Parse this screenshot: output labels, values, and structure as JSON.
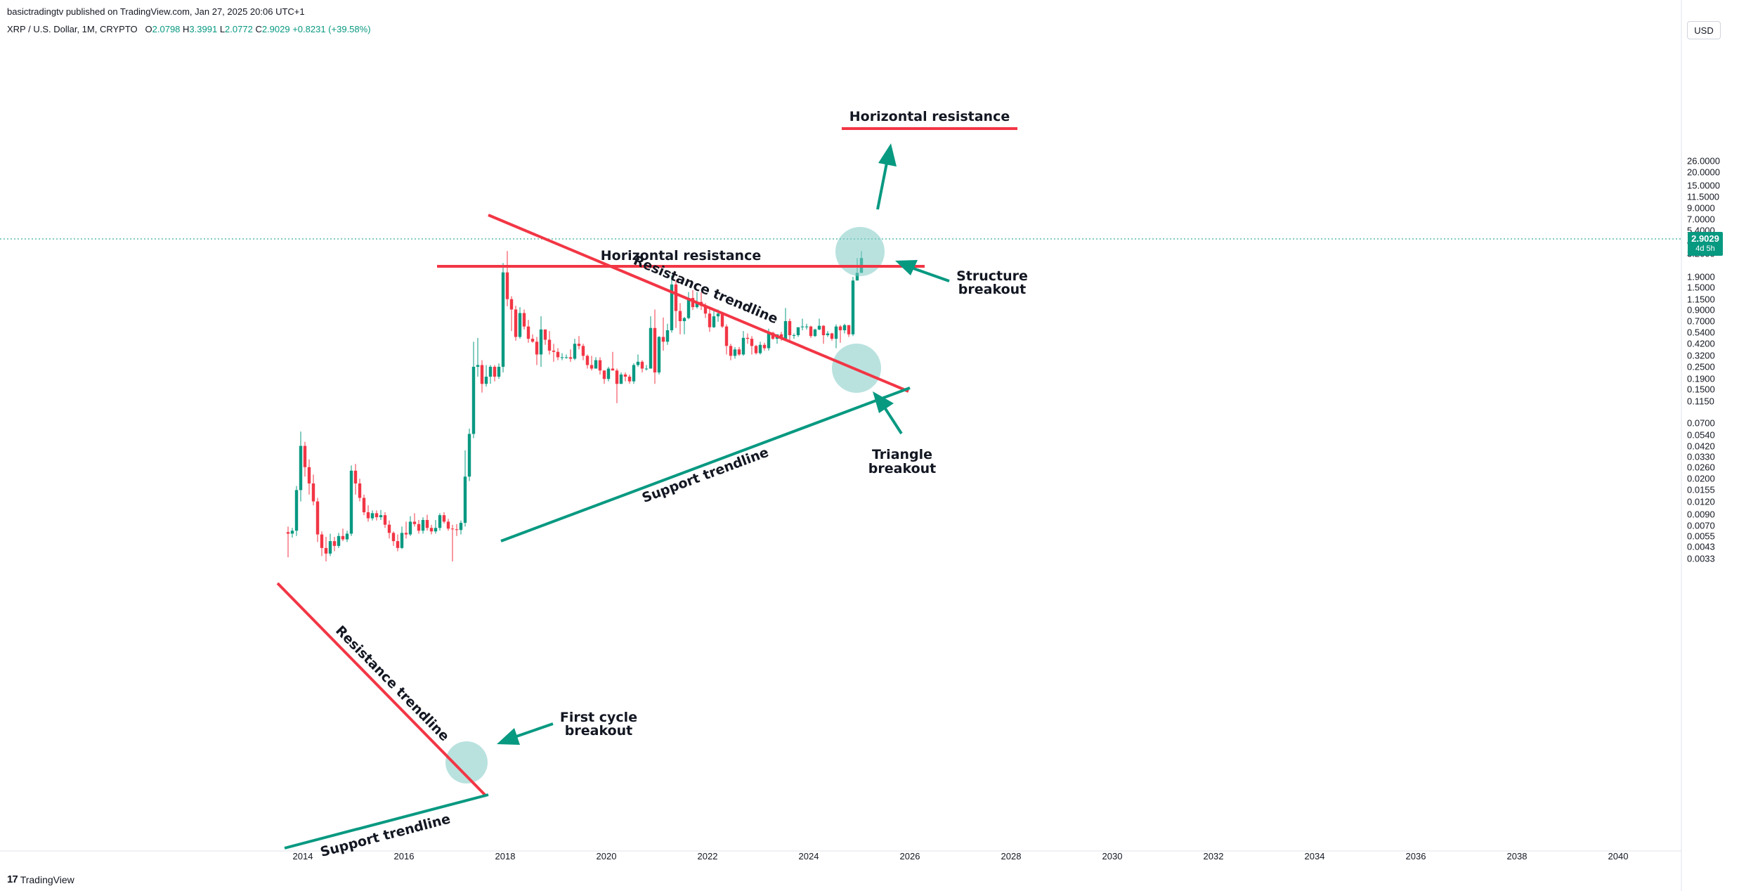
{
  "header": {
    "published": "basictradingtv published on TradingView.com, Jan 27, 2025 20:06 UTC+1",
    "symbol": "XRP / U.S. Dollar, 1M, CRYPTO",
    "o_label": "O",
    "o_value": "2.0798",
    "h_label": "H",
    "h_value": "3.3991",
    "l_label": "L",
    "l_value": "2.0772",
    "c_label": "C",
    "c_value": "2.9029",
    "change": "+0.8231 (+39.58%)"
  },
  "currency_button": "USD",
  "last_price": {
    "price": "2.9029",
    "countdown": "4d 5h",
    "value": 2.9029
  },
  "colors": {
    "up": "#089981",
    "down": "#f23645",
    "resistance": "#f23645",
    "support": "#089981",
    "highlight": "#80cbc4"
  },
  "price_axis": {
    "scale": "log",
    "ticks": [
      "26.0000",
      "20.0000",
      "15.0000",
      "11.5000",
      "9.0000",
      "7.0000",
      "5.4000",
      "4.2000",
      "3.2000",
      "1.9000",
      "1.5000",
      "1.1500",
      "0.9000",
      "0.7000",
      "0.5400",
      "0.4200",
      "0.3200",
      "0.2500",
      "0.1900",
      "0.1500",
      "0.1150",
      "0.0700",
      "0.0540",
      "0.0420",
      "0.0330",
      "0.0260",
      "0.0200",
      "0.0155",
      "0.0120",
      "0.0090",
      "0.0070",
      "0.0055",
      "0.0043",
      "0.0033"
    ]
  },
  "time_axis": {
    "ticks": [
      "2014",
      "2016",
      "2018",
      "2020",
      "2022",
      "2024",
      "2026",
      "2028",
      "2030",
      "2032",
      "2034",
      "2036",
      "2038",
      "2040"
    ]
  },
  "annotations": {
    "top_resistance": "Horizontal resistance",
    "mid_resistance": "Horizontal resistance",
    "resistance_trend_upper": "Resistance trendline",
    "support_trend_upper": "Support trendline",
    "resistance_trend_lower": "Resistance trendline",
    "support_trend_lower": "Support trendline",
    "structure_1": "Structure",
    "structure_2": "breakout",
    "triangle_1": "Triangle",
    "triangle_2": "breakout",
    "first_cycle_1": "First cycle",
    "first_cycle_2": "breakout"
  },
  "chart_data": {
    "type": "candlestick",
    "title": "XRP / U.S. Dollar, 1M, CRYPTO",
    "y_scale": "log",
    "ylim": [
      0.003,
      30
    ],
    "xlim": [
      "2013-07",
      "2040-12"
    ],
    "candles": [
      {
        "t": "2013-09",
        "o": 0.006,
        "h": 0.0068,
        "l": 0.0034,
        "c": 0.0058
      },
      {
        "t": "2013-10",
        "o": 0.0058,
        "h": 0.0066,
        "l": 0.0053,
        "c": 0.0062
      },
      {
        "t": "2013-11",
        "o": 0.0062,
        "h": 0.017,
        "l": 0.0055,
        "c": 0.0155
      },
      {
        "t": "2013-12",
        "o": 0.0155,
        "h": 0.058,
        "l": 0.012,
        "c": 0.042
      },
      {
        "t": "2014-01",
        "o": 0.042,
        "h": 0.046,
        "l": 0.021,
        "c": 0.026
      },
      {
        "t": "2014-02",
        "o": 0.026,
        "h": 0.031,
        "l": 0.014,
        "c": 0.018
      },
      {
        "t": "2014-03",
        "o": 0.018,
        "h": 0.022,
        "l": 0.011,
        "c": 0.012
      },
      {
        "t": "2014-04",
        "o": 0.012,
        "h": 0.013,
        "l": 0.0048,
        "c": 0.0057
      },
      {
        "t": "2014-05",
        "o": 0.0057,
        "h": 0.0061,
        "l": 0.0035,
        "c": 0.0042
      },
      {
        "t": "2014-06",
        "o": 0.0042,
        "h": 0.0054,
        "l": 0.0031,
        "c": 0.0037
      },
      {
        "t": "2014-07",
        "o": 0.0037,
        "h": 0.0058,
        "l": 0.0035,
        "c": 0.0049
      },
      {
        "t": "2014-08",
        "o": 0.0049,
        "h": 0.0054,
        "l": 0.0039,
        "c": 0.0044
      },
      {
        "t": "2014-09",
        "o": 0.0044,
        "h": 0.0059,
        "l": 0.0042,
        "c": 0.0055
      },
      {
        "t": "2014-10",
        "o": 0.0055,
        "h": 0.0065,
        "l": 0.0049,
        "c": 0.0051
      },
      {
        "t": "2014-11",
        "o": 0.0051,
        "h": 0.0062,
        "l": 0.0048,
        "c": 0.0058
      },
      {
        "t": "2014-12",
        "o": 0.0058,
        "h": 0.027,
        "l": 0.0055,
        "c": 0.024
      },
      {
        "t": "2015-01",
        "o": 0.024,
        "h": 0.028,
        "l": 0.014,
        "c": 0.018
      },
      {
        "t": "2015-02",
        "o": 0.018,
        "h": 0.02,
        "l": 0.012,
        "c": 0.013
      },
      {
        "t": "2015-03",
        "o": 0.013,
        "h": 0.014,
        "l": 0.0088,
        "c": 0.0094
      },
      {
        "t": "2015-04",
        "o": 0.0094,
        "h": 0.011,
        "l": 0.0076,
        "c": 0.0082
      },
      {
        "t": "2015-05",
        "o": 0.0082,
        "h": 0.0098,
        "l": 0.0078,
        "c": 0.0092
      },
      {
        "t": "2015-06",
        "o": 0.0092,
        "h": 0.0098,
        "l": 0.0078,
        "c": 0.0084
      },
      {
        "t": "2015-07",
        "o": 0.0084,
        "h": 0.0099,
        "l": 0.0079,
        "c": 0.0088
      },
      {
        "t": "2015-08",
        "o": 0.0088,
        "h": 0.0094,
        "l": 0.0066,
        "c": 0.0071
      },
      {
        "t": "2015-09",
        "o": 0.0071,
        "h": 0.0078,
        "l": 0.0052,
        "c": 0.0059
      },
      {
        "t": "2015-10",
        "o": 0.0059,
        "h": 0.0061,
        "l": 0.0044,
        "c": 0.0049
      },
      {
        "t": "2015-11",
        "o": 0.0049,
        "h": 0.0057,
        "l": 0.0039,
        "c": 0.0042
      },
      {
        "t": "2015-12",
        "o": 0.0042,
        "h": 0.0068,
        "l": 0.0041,
        "c": 0.0059
      },
      {
        "t": "2016-01",
        "o": 0.0059,
        "h": 0.0076,
        "l": 0.0052,
        "c": 0.0057
      },
      {
        "t": "2016-02",
        "o": 0.0057,
        "h": 0.0086,
        "l": 0.0055,
        "c": 0.0076
      },
      {
        "t": "2016-03",
        "o": 0.0076,
        "h": 0.0092,
        "l": 0.0068,
        "c": 0.0072
      },
      {
        "t": "2016-04",
        "o": 0.0072,
        "h": 0.0079,
        "l": 0.0058,
        "c": 0.0062
      },
      {
        "t": "2016-05",
        "o": 0.0062,
        "h": 0.0084,
        "l": 0.0058,
        "c": 0.0079
      },
      {
        "t": "2016-06",
        "o": 0.0079,
        "h": 0.0089,
        "l": 0.0062,
        "c": 0.0066
      },
      {
        "t": "2016-07",
        "o": 0.0066,
        "h": 0.0071,
        "l": 0.0057,
        "c": 0.0061
      },
      {
        "t": "2016-08",
        "o": 0.0061,
        "h": 0.0079,
        "l": 0.0058,
        "c": 0.0066
      },
      {
        "t": "2016-09",
        "o": 0.0066,
        "h": 0.0092,
        "l": 0.0062,
        "c": 0.0088
      },
      {
        "t": "2016-10",
        "o": 0.0088,
        "h": 0.0094,
        "l": 0.0073,
        "c": 0.0076
      },
      {
        "t": "2016-11",
        "o": 0.0076,
        "h": 0.0081,
        "l": 0.0062,
        "c": 0.0065
      },
      {
        "t": "2016-12",
        "o": 0.0065,
        "h": 0.0071,
        "l": 0.0031,
        "c": 0.0064
      },
      {
        "t": "2017-01",
        "o": 0.0064,
        "h": 0.0072,
        "l": 0.0055,
        "c": 0.0063
      },
      {
        "t": "2017-02",
        "o": 0.0063,
        "h": 0.0078,
        "l": 0.0057,
        "c": 0.0074
      },
      {
        "t": "2017-03",
        "o": 0.0074,
        "h": 0.038,
        "l": 0.0068,
        "c": 0.021
      },
      {
        "t": "2017-04",
        "o": 0.021,
        "h": 0.062,
        "l": 0.019,
        "c": 0.055
      },
      {
        "t": "2017-05",
        "o": 0.055,
        "h": 0.44,
        "l": 0.05,
        "c": 0.25
      },
      {
        "t": "2017-06",
        "o": 0.25,
        "h": 0.48,
        "l": 0.2,
        "c": 0.26
      },
      {
        "t": "2017-07",
        "o": 0.26,
        "h": 0.29,
        "l": 0.14,
        "c": 0.17
      },
      {
        "t": "2017-08",
        "o": 0.17,
        "h": 0.26,
        "l": 0.16,
        "c": 0.2
      },
      {
        "t": "2017-09",
        "o": 0.2,
        "h": 0.26,
        "l": 0.17,
        "c": 0.25
      },
      {
        "t": "2017-10",
        "o": 0.25,
        "h": 0.26,
        "l": 0.18,
        "c": 0.2
      },
      {
        "t": "2017-11",
        "o": 0.2,
        "h": 0.27,
        "l": 0.19,
        "c": 0.25
      },
      {
        "t": "2017-12",
        "o": 0.25,
        "h": 2.6,
        "l": 0.22,
        "c": 2.1
      },
      {
        "t": "2018-01",
        "o": 2.1,
        "h": 3.4,
        "l": 0.98,
        "c": 1.15
      },
      {
        "t": "2018-02",
        "o": 1.15,
        "h": 1.23,
        "l": 0.56,
        "c": 0.91
      },
      {
        "t": "2018-03",
        "o": 0.91,
        "h": 0.99,
        "l": 0.45,
        "c": 0.49
      },
      {
        "t": "2018-04",
        "o": 0.49,
        "h": 0.96,
        "l": 0.47,
        "c": 0.84
      },
      {
        "t": "2018-05",
        "o": 0.84,
        "h": 0.91,
        "l": 0.58,
        "c": 0.62
      },
      {
        "t": "2018-06",
        "o": 0.62,
        "h": 0.72,
        "l": 0.43,
        "c": 0.47
      },
      {
        "t": "2018-07",
        "o": 0.47,
        "h": 0.52,
        "l": 0.43,
        "c": 0.44
      },
      {
        "t": "2018-08",
        "o": 0.44,
        "h": 0.49,
        "l": 0.26,
        "c": 0.33
      },
      {
        "t": "2018-09",
        "o": 0.33,
        "h": 0.78,
        "l": 0.25,
        "c": 0.58
      },
      {
        "t": "2018-10",
        "o": 0.58,
        "h": 0.58,
        "l": 0.41,
        "c": 0.46
      },
      {
        "t": "2018-11",
        "o": 0.46,
        "h": 0.56,
        "l": 0.33,
        "c": 0.36
      },
      {
        "t": "2018-12",
        "o": 0.36,
        "h": 0.42,
        "l": 0.28,
        "c": 0.35
      },
      {
        "t": "2019-01",
        "o": 0.35,
        "h": 0.38,
        "l": 0.29,
        "c": 0.31
      },
      {
        "t": "2019-02",
        "o": 0.31,
        "h": 0.34,
        "l": 0.29,
        "c": 0.31
      },
      {
        "t": "2019-03",
        "o": 0.31,
        "h": 0.33,
        "l": 0.3,
        "c": 0.31
      },
      {
        "t": "2019-04",
        "o": 0.31,
        "h": 0.37,
        "l": 0.28,
        "c": 0.3
      },
      {
        "t": "2019-05",
        "o": 0.3,
        "h": 0.47,
        "l": 0.29,
        "c": 0.42
      },
      {
        "t": "2019-06",
        "o": 0.42,
        "h": 0.5,
        "l": 0.37,
        "c": 0.4
      },
      {
        "t": "2019-07",
        "o": 0.4,
        "h": 0.42,
        "l": 0.29,
        "c": 0.32
      },
      {
        "t": "2019-08",
        "o": 0.32,
        "h": 0.33,
        "l": 0.24,
        "c": 0.26
      },
      {
        "t": "2019-09",
        "o": 0.26,
        "h": 0.32,
        "l": 0.23,
        "c": 0.24
      },
      {
        "t": "2019-10",
        "o": 0.24,
        "h": 0.31,
        "l": 0.24,
        "c": 0.29
      },
      {
        "t": "2019-11",
        "o": 0.29,
        "h": 0.31,
        "l": 0.21,
        "c": 0.23
      },
      {
        "t": "2019-12",
        "o": 0.23,
        "h": 0.23,
        "l": 0.17,
        "c": 0.19
      },
      {
        "t": "2020-01",
        "o": 0.19,
        "h": 0.25,
        "l": 0.18,
        "c": 0.24
      },
      {
        "t": "2020-02",
        "o": 0.24,
        "h": 0.35,
        "l": 0.23,
        "c": 0.23
      },
      {
        "t": "2020-03",
        "o": 0.23,
        "h": 0.24,
        "l": 0.11,
        "c": 0.17
      },
      {
        "t": "2020-04",
        "o": 0.17,
        "h": 0.22,
        "l": 0.17,
        "c": 0.21
      },
      {
        "t": "2020-05",
        "o": 0.21,
        "h": 0.22,
        "l": 0.18,
        "c": 0.2
      },
      {
        "t": "2020-06",
        "o": 0.2,
        "h": 0.21,
        "l": 0.17,
        "c": 0.18
      },
      {
        "t": "2020-07",
        "o": 0.18,
        "h": 0.27,
        "l": 0.17,
        "c": 0.26
      },
      {
        "t": "2020-08",
        "o": 0.26,
        "h": 0.33,
        "l": 0.25,
        "c": 0.28
      },
      {
        "t": "2020-09",
        "o": 0.28,
        "h": 0.29,
        "l": 0.22,
        "c": 0.24
      },
      {
        "t": "2020-10",
        "o": 0.24,
        "h": 0.26,
        "l": 0.23,
        "c": 0.24
      },
      {
        "t": "2020-11",
        "o": 0.24,
        "h": 0.78,
        "l": 0.24,
        "c": 0.6
      },
      {
        "t": "2020-12",
        "o": 0.6,
        "h": 0.91,
        "l": 0.17,
        "c": 0.22
      },
      {
        "t": "2021-01",
        "o": 0.22,
        "h": 0.5,
        "l": 0.21,
        "c": 0.49
      },
      {
        "t": "2021-02",
        "o": 0.49,
        "h": 0.76,
        "l": 0.36,
        "c": 0.44
      },
      {
        "t": "2021-03",
        "o": 0.44,
        "h": 0.66,
        "l": 0.41,
        "c": 0.57
      },
      {
        "t": "2021-04",
        "o": 0.57,
        "h": 1.96,
        "l": 0.54,
        "c": 1.6
      },
      {
        "t": "2021-05",
        "o": 1.6,
        "h": 1.76,
        "l": 0.6,
        "c": 0.88
      },
      {
        "t": "2021-06",
        "o": 0.88,
        "h": 1.05,
        "l": 0.52,
        "c": 0.7
      },
      {
        "t": "2021-07",
        "o": 0.7,
        "h": 0.77,
        "l": 0.52,
        "c": 0.75
      },
      {
        "t": "2021-08",
        "o": 0.75,
        "h": 1.35,
        "l": 0.73,
        "c": 1.18
      },
      {
        "t": "2021-09",
        "o": 1.18,
        "h": 1.41,
        "l": 0.9,
        "c": 0.96
      },
      {
        "t": "2021-10",
        "o": 0.96,
        "h": 1.35,
        "l": 0.93,
        "c": 1.08
      },
      {
        "t": "2021-11",
        "o": 1.08,
        "h": 1.35,
        "l": 0.9,
        "c": 0.99
      },
      {
        "t": "2021-12",
        "o": 0.99,
        "h": 1.05,
        "l": 0.75,
        "c": 0.83
      },
      {
        "t": "2022-01",
        "o": 0.83,
        "h": 0.91,
        "l": 0.55,
        "c": 0.61
      },
      {
        "t": "2022-02",
        "o": 0.61,
        "h": 0.91,
        "l": 0.6,
        "c": 0.78
      },
      {
        "t": "2022-03",
        "o": 0.78,
        "h": 0.91,
        "l": 0.69,
        "c": 0.83
      },
      {
        "t": "2022-04",
        "o": 0.83,
        "h": 0.84,
        "l": 0.6,
        "c": 0.62
      },
      {
        "t": "2022-05",
        "o": 0.62,
        "h": 0.65,
        "l": 0.33,
        "c": 0.4
      },
      {
        "t": "2022-06",
        "o": 0.4,
        "h": 0.42,
        "l": 0.29,
        "c": 0.32
      },
      {
        "t": "2022-07",
        "o": 0.32,
        "h": 0.39,
        "l": 0.3,
        "c": 0.37
      },
      {
        "t": "2022-08",
        "o": 0.37,
        "h": 0.39,
        "l": 0.32,
        "c": 0.33
      },
      {
        "t": "2022-09",
        "o": 0.33,
        "h": 0.56,
        "l": 0.32,
        "c": 0.48
      },
      {
        "t": "2022-10",
        "o": 0.48,
        "h": 0.53,
        "l": 0.42,
        "c": 0.47
      },
      {
        "t": "2022-11",
        "o": 0.47,
        "h": 0.5,
        "l": 0.33,
        "c": 0.4
      },
      {
        "t": "2022-12",
        "o": 0.4,
        "h": 0.41,
        "l": 0.33,
        "c": 0.34
      },
      {
        "t": "2023-01",
        "o": 0.34,
        "h": 0.44,
        "l": 0.33,
        "c": 0.41
      },
      {
        "t": "2023-02",
        "o": 0.41,
        "h": 0.43,
        "l": 0.36,
        "c": 0.38
      },
      {
        "t": "2023-03",
        "o": 0.38,
        "h": 0.59,
        "l": 0.36,
        "c": 0.54
      },
      {
        "t": "2023-04",
        "o": 0.54,
        "h": 0.55,
        "l": 0.46,
        "c": 0.47
      },
      {
        "t": "2023-05",
        "o": 0.47,
        "h": 0.5,
        "l": 0.42,
        "c": 0.52
      },
      {
        "t": "2023-06",
        "o": 0.52,
        "h": 0.55,
        "l": 0.45,
        "c": 0.47
      },
      {
        "t": "2023-07",
        "o": 0.47,
        "h": 0.94,
        "l": 0.46,
        "c": 0.7
      },
      {
        "t": "2023-08",
        "o": 0.7,
        "h": 0.74,
        "l": 0.43,
        "c": 0.51
      },
      {
        "t": "2023-09",
        "o": 0.51,
        "h": 0.53,
        "l": 0.47,
        "c": 0.51
      },
      {
        "t": "2023-10",
        "o": 0.51,
        "h": 0.58,
        "l": 0.49,
        "c": 0.61
      },
      {
        "t": "2023-11",
        "o": 0.61,
        "h": 0.74,
        "l": 0.57,
        "c": 0.62
      },
      {
        "t": "2023-12",
        "o": 0.62,
        "h": 0.66,
        "l": 0.58,
        "c": 0.62
      },
      {
        "t": "2024-01",
        "o": 0.62,
        "h": 0.63,
        "l": 0.48,
        "c": 0.5
      },
      {
        "t": "2024-02",
        "o": 0.5,
        "h": 0.59,
        "l": 0.49,
        "c": 0.58
      },
      {
        "t": "2024-03",
        "o": 0.58,
        "h": 0.74,
        "l": 0.57,
        "c": 0.63
      },
      {
        "t": "2024-04",
        "o": 0.63,
        "h": 0.64,
        "l": 0.42,
        "c": 0.51
      },
      {
        "t": "2024-05",
        "o": 0.51,
        "h": 0.56,
        "l": 0.49,
        "c": 0.53
      },
      {
        "t": "2024-06",
        "o": 0.53,
        "h": 0.54,
        "l": 0.45,
        "c": 0.47
      },
      {
        "t": "2024-07",
        "o": 0.47,
        "h": 0.65,
        "l": 0.38,
        "c": 0.62
      },
      {
        "t": "2024-08",
        "o": 0.62,
        "h": 0.64,
        "l": 0.43,
        "c": 0.57
      },
      {
        "t": "2024-09",
        "o": 0.57,
        "h": 0.66,
        "l": 0.53,
        "c": 0.64
      },
      {
        "t": "2024-10",
        "o": 0.64,
        "h": 0.64,
        "l": 0.49,
        "c": 0.52
      },
      {
        "t": "2024-11",
        "o": 0.52,
        "h": 1.9,
        "l": 0.5,
        "c": 1.75
      },
      {
        "t": "2024-12",
        "o": 1.75,
        "h": 2.9,
        "l": 1.77,
        "c": 2.08
      },
      {
        "t": "2025-01",
        "o": 2.0798,
        "h": 3.3991,
        "l": 2.0772,
        "c": 2.9029
      }
    ]
  }
}
